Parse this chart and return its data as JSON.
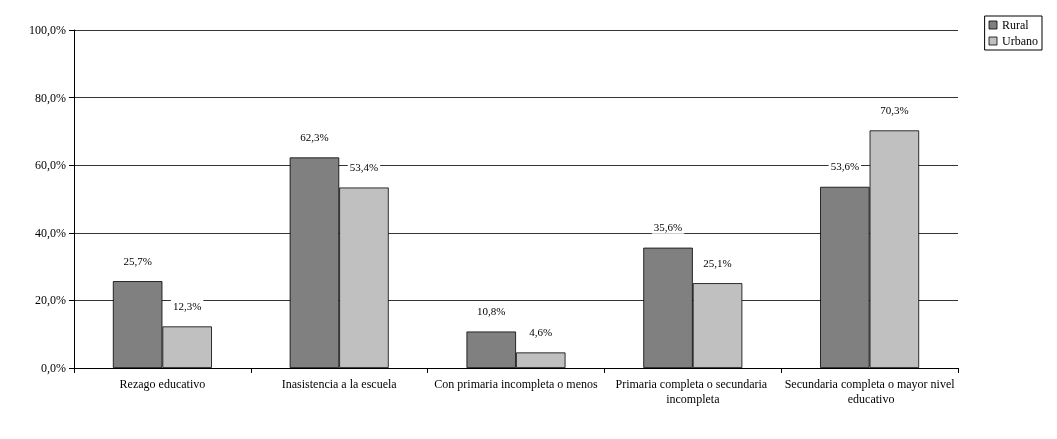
{
  "chart_data": {
    "type": "bar",
    "categories": [
      "Rezago educativo",
      "Inasistencia a la escuela",
      "Con primaria incompleta o menos",
      "Primaria completa o secundaria incompleta",
      "Secundaria completa o mayor nivel educativo"
    ],
    "series": [
      {
        "name": "Rural",
        "color": "#808080",
        "values": [
          25.7,
          62.3,
          10.8,
          35.6,
          53.6
        ],
        "value_labels": [
          "25,7%",
          "62,3%",
          "10,8%",
          "35,6%",
          "53,6%"
        ]
      },
      {
        "name": "Urbano",
        "color": "#c0c0c0",
        "values": [
          12.3,
          53.4,
          4.6,
          25.1,
          70.3
        ],
        "value_labels": [
          "12,3%",
          "53,4%",
          "4,6%",
          "25,1%",
          "70,3%"
        ]
      }
    ],
    "ylim": [
      0,
      100
    ],
    "yticks": [
      {
        "value": 0,
        "label": "0,0%"
      },
      {
        "value": 20,
        "label": "20,0%"
      },
      {
        "value": 40,
        "label": "40,0%"
      },
      {
        "value": 60,
        "label": "60,0%"
      },
      {
        "value": 80,
        "label": "80,0%"
      },
      {
        "value": 100,
        "label": "100,0%"
      }
    ],
    "grid": "y",
    "legend": "top right"
  }
}
